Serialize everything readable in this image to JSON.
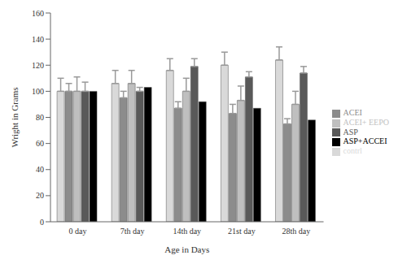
{
  "chart_data": {
    "type": "bar",
    "x_label": "Age in Days",
    "y_label": "Wright in Grams",
    "categories": [
      "0 day",
      "7th day",
      "14th day",
      "21st day",
      "28th day"
    ],
    "series": [
      {
        "name": "contrl",
        "color": "#d9d9d9",
        "values": [
          100,
          106,
          116,
          120,
          124
        ],
        "errors": [
          10,
          10,
          9,
          10,
          10
        ]
      },
      {
        "name": "ACEI",
        "color": "#8c8c8c",
        "values": [
          100,
          95,
          87,
          83,
          75
        ],
        "errors": [
          6,
          5,
          5,
          7,
          4
        ]
      },
      {
        "name": "ACEI+ EEPO",
        "color": "#bfbfbf",
        "values": [
          100,
          106,
          100,
          93,
          90
        ],
        "errors": [
          11,
          10,
          10,
          11,
          10
        ]
      },
      {
        "name": "ASP",
        "color": "#595959",
        "values": [
          100,
          100,
          119,
          111,
          114
        ],
        "errors": [
          7,
          3,
          6,
          4,
          5
        ]
      },
      {
        "name": "ASP+ACCEI",
        "color": "#000000",
        "values": [
          100,
          103,
          92,
          87,
          78
        ]
      }
    ],
    "ylim": [
      0,
      160
    ],
    "yticks": [
      0,
      20,
      40,
      60,
      80,
      100,
      120,
      140,
      160
    ],
    "grid": false,
    "legend": "right"
  }
}
